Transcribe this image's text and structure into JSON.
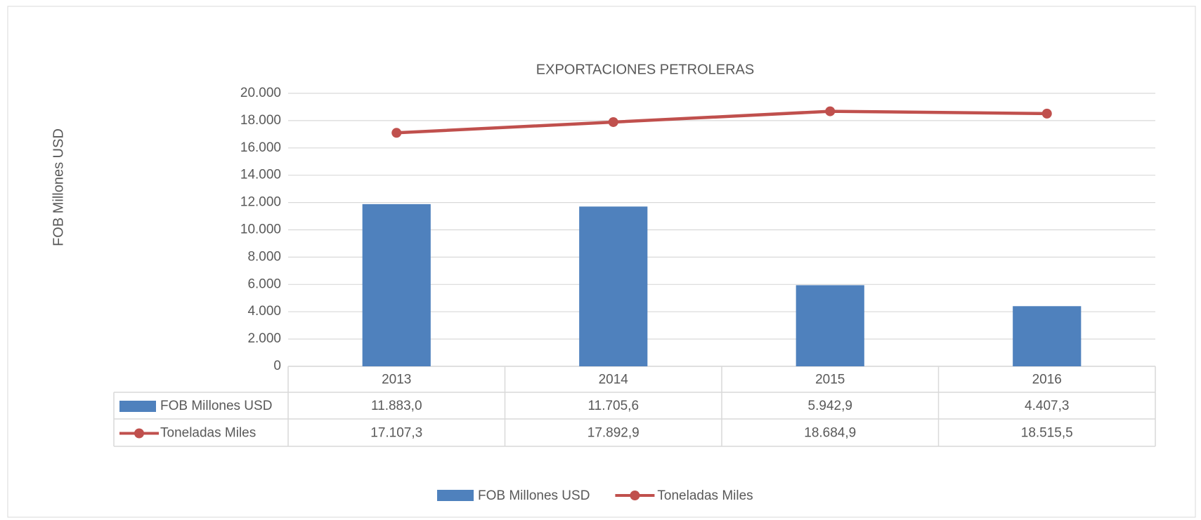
{
  "chart_data": {
    "type": "bar-line",
    "title": "EXPORTACIONES PETROLERAS",
    "y_label": "FOB Millones USD",
    "categories": [
      "2013",
      "2014",
      "2015",
      "2016"
    ],
    "series": [
      {
        "name": "FOB Millones USD",
        "type": "bar",
        "color": "#4f81bd",
        "values": [
          11883.0,
          11705.6,
          5942.9,
          4407.3
        ],
        "value_labels": [
          "11.883,0",
          "11.705,6",
          "5.942,9",
          "4.407,3"
        ]
      },
      {
        "name": "Toneladas Miles",
        "type": "line",
        "color": "#c0504d",
        "values": [
          17107.3,
          17892.9,
          18684.9,
          18515.5
        ],
        "value_labels": [
          "17.107,3",
          "17.892,9",
          "18.684,9",
          "18.515,5"
        ]
      }
    ],
    "ylim": [
      0,
      20000
    ],
    "yticks": [
      0,
      {
        "value": 2000,
        "label": "2.000"
      },
      {
        "value": 4000,
        "label": "4.000"
      },
      {
        "value": 6000,
        "label": "6.000"
      },
      {
        "value": 8000,
        "label": "8.000"
      },
      {
        "value": 10000,
        "label": "10.000"
      },
      {
        "value": 12000,
        "label": "12.000"
      },
      {
        "value": 14000,
        "label": "14.000"
      },
      {
        "value": 16000,
        "label": "16.000"
      },
      {
        "value": 18000,
        "label": "18.000"
      },
      {
        "value": 20000,
        "label": "20.000"
      }
    ],
    "grid": true,
    "legend": "bottom"
  }
}
